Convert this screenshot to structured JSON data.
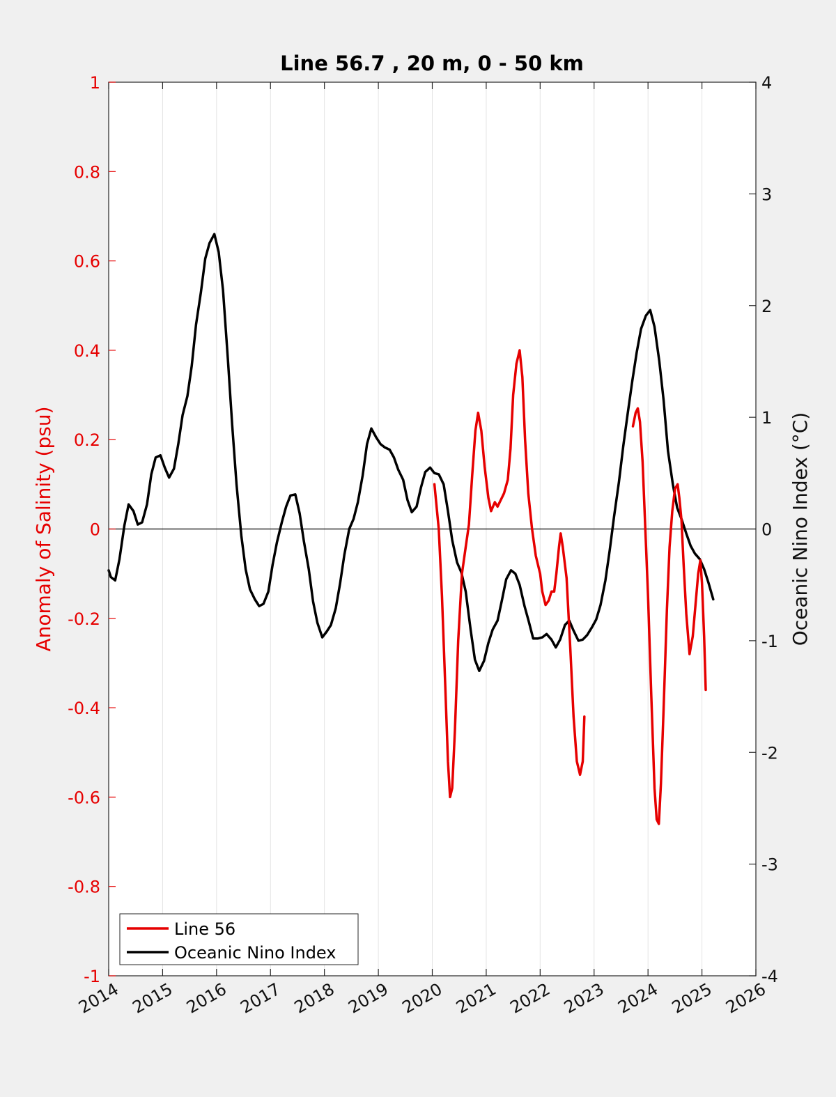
{
  "chart_data": {
    "type": "line",
    "title": "Line 56.7 , 20 m, 0 - 50 km",
    "ylabel_left": "Anomaly of Salinity (psu)",
    "ylabel_right": "Oceanic Nino Index (°C)",
    "xlim": [
      2014,
      2026
    ],
    "ylim_left": [
      -1,
      1
    ],
    "ylim_right": [
      -4,
      4
    ],
    "x_ticks": [
      "2014",
      "2015",
      "2016",
      "2017",
      "2018",
      "2019",
      "2020",
      "2021",
      "2022",
      "2023",
      "2024",
      "2025",
      "2026"
    ],
    "y_ticks_left": [
      "1",
      "0.8",
      "0.6",
      "0.4",
      "0.2",
      "0",
      "-0.2",
      "-0.4",
      "-0.6",
      "-0.8",
      "-1"
    ],
    "y_ticks_right": [
      "4",
      "3",
      "2",
      "1",
      "0",
      "-1",
      "-2",
      "-3",
      "-4"
    ],
    "grid": "vertical",
    "zero_line": true,
    "legend_position": "bottom-left",
    "colors": {
      "line56": "#e60000",
      "oni": "#000000",
      "left_axis": "#e60000"
    },
    "series": [
      {
        "name": "Line 56",
        "axis": "left",
        "segments": [
          [
            [
              2020.04,
              0.1
            ],
            [
              2020.12,
              0.0
            ],
            [
              2020.18,
              -0.15
            ],
            [
              2020.24,
              -0.35
            ],
            [
              2020.29,
              -0.52
            ],
            [
              2020.33,
              -0.6
            ],
            [
              2020.37,
              -0.58
            ],
            [
              2020.42,
              -0.45
            ],
            [
              2020.48,
              -0.25
            ],
            [
              2020.55,
              -0.1
            ],
            [
              2020.62,
              -0.04
            ],
            [
              2020.68,
              0.01
            ],
            [
              2020.74,
              0.12
            ],
            [
              2020.8,
              0.22
            ],
            [
              2020.85,
              0.26
            ],
            [
              2020.91,
              0.22
            ],
            [
              2020.97,
              0.14
            ],
            [
              2021.04,
              0.07
            ],
            [
              2021.09,
              0.04
            ],
            [
              2021.16,
              0.06
            ],
            [
              2021.21,
              0.05
            ],
            [
              2021.29,
              0.07
            ],
            [
              2021.33,
              0.08
            ],
            [
              2021.4,
              0.11
            ],
            [
              2021.45,
              0.18
            ],
            [
              2021.5,
              0.3
            ],
            [
              2021.56,
              0.37
            ],
            [
              2021.62,
              0.4
            ],
            [
              2021.67,
              0.34
            ],
            [
              2021.72,
              0.2
            ],
            [
              2021.78,
              0.08
            ],
            [
              2021.85,
              0.0
            ],
            [
              2021.92,
              -0.06
            ],
            [
              2022.0,
              -0.1
            ],
            [
              2022.04,
              -0.14
            ],
            [
              2022.1,
              -0.17
            ],
            [
              2022.16,
              -0.16
            ],
            [
              2022.21,
              -0.14
            ],
            [
              2022.26,
              -0.14
            ],
            [
              2022.3,
              -0.1
            ],
            [
              2022.35,
              -0.04
            ],
            [
              2022.38,
              -0.01
            ],
            [
              2022.42,
              -0.04
            ],
            [
              2022.49,
              -0.11
            ],
            [
              2022.56,
              -0.27
            ],
            [
              2022.62,
              -0.42
            ],
            [
              2022.68,
              -0.52
            ],
            [
              2022.74,
              -0.55
            ],
            [
              2022.79,
              -0.52
            ],
            [
              2022.82,
              -0.42
            ]
          ],
          [
            [
              2023.72,
              0.23
            ],
            [
              2023.77,
              0.26
            ],
            [
              2023.81,
              0.27
            ],
            [
              2023.85,
              0.24
            ],
            [
              2023.9,
              0.15
            ],
            [
              2023.95,
              0.0
            ],
            [
              2024.0,
              -0.15
            ],
            [
              2024.06,
              -0.37
            ],
            [
              2024.12,
              -0.58
            ],
            [
              2024.16,
              -0.65
            ],
            [
              2024.2,
              -0.66
            ],
            [
              2024.24,
              -0.57
            ],
            [
              2024.29,
              -0.4
            ],
            [
              2024.35,
              -0.18
            ],
            [
              2024.4,
              -0.04
            ],
            [
              2024.45,
              0.04
            ],
            [
              2024.5,
              0.09
            ],
            [
              2024.55,
              0.1
            ],
            [
              2024.58,
              0.07
            ],
            [
              2024.62,
              0.02
            ],
            [
              2024.66,
              -0.08
            ],
            [
              2024.71,
              -0.19
            ],
            [
              2024.77,
              -0.28
            ],
            [
              2024.83,
              -0.24
            ],
            [
              2024.88,
              -0.17
            ],
            [
              2024.93,
              -0.1
            ],
            [
              2024.97,
              -0.07
            ],
            [
              2025.0,
              -0.12
            ],
            [
              2025.04,
              -0.24
            ],
            [
              2025.07,
              -0.36
            ]
          ]
        ]
      },
      {
        "name": "Oceanic Nino Index",
        "axis": "right",
        "segments": [
          [
            [
              2014.0,
              -0.37
            ],
            [
              2014.04,
              -0.43
            ],
            [
              2014.12,
              -0.46
            ],
            [
              2014.2,
              -0.27
            ],
            [
              2014.29,
              0.03
            ],
            [
              2014.37,
              0.22
            ],
            [
              2014.46,
              0.16
            ],
            [
              2014.54,
              0.04
            ],
            [
              2014.62,
              0.06
            ],
            [
              2014.71,
              0.22
            ],
            [
              2014.79,
              0.49
            ],
            [
              2014.87,
              0.64
            ],
            [
              2014.96,
              0.66
            ],
            [
              2015.04,
              0.55
            ],
            [
              2015.12,
              0.46
            ],
            [
              2015.21,
              0.54
            ],
            [
              2015.29,
              0.76
            ],
            [
              2015.37,
              1.02
            ],
            [
              2015.46,
              1.19
            ],
            [
              2015.54,
              1.46
            ],
            [
              2015.62,
              1.83
            ],
            [
              2015.71,
              2.12
            ],
            [
              2015.79,
              2.42
            ],
            [
              2015.87,
              2.56
            ],
            [
              2015.96,
              2.64
            ],
            [
              2016.04,
              2.48
            ],
            [
              2016.12,
              2.14
            ],
            [
              2016.21,
              1.52
            ],
            [
              2016.29,
              0.93
            ],
            [
              2016.37,
              0.4
            ],
            [
              2016.46,
              -0.06
            ],
            [
              2016.54,
              -0.36
            ],
            [
              2016.62,
              -0.54
            ],
            [
              2016.71,
              -0.63
            ],
            [
              2016.79,
              -0.69
            ],
            [
              2016.87,
              -0.67
            ],
            [
              2016.96,
              -0.56
            ],
            [
              2017.04,
              -0.32
            ],
            [
              2017.12,
              -0.12
            ],
            [
              2017.21,
              0.06
            ],
            [
              2017.29,
              0.2
            ],
            [
              2017.37,
              0.3
            ],
            [
              2017.46,
              0.31
            ],
            [
              2017.54,
              0.14
            ],
            [
              2017.62,
              -0.11
            ],
            [
              2017.71,
              -0.36
            ],
            [
              2017.79,
              -0.65
            ],
            [
              2017.87,
              -0.84
            ],
            [
              2017.96,
              -0.97
            ],
            [
              2018.04,
              -0.92
            ],
            [
              2018.12,
              -0.86
            ],
            [
              2018.21,
              -0.71
            ],
            [
              2018.29,
              -0.49
            ],
            [
              2018.37,
              -0.23
            ],
            [
              2018.46,
              0.0
            ],
            [
              2018.54,
              0.09
            ],
            [
              2018.62,
              0.24
            ],
            [
              2018.71,
              0.48
            ],
            [
              2018.79,
              0.76
            ],
            [
              2018.87,
              0.9
            ],
            [
              2018.96,
              0.82
            ],
            [
              2019.04,
              0.76
            ],
            [
              2019.12,
              0.73
            ],
            [
              2019.21,
              0.71
            ],
            [
              2019.29,
              0.64
            ],
            [
              2019.37,
              0.53
            ],
            [
              2019.46,
              0.44
            ],
            [
              2019.54,
              0.26
            ],
            [
              2019.62,
              0.15
            ],
            [
              2019.71,
              0.2
            ],
            [
              2019.79,
              0.37
            ],
            [
              2019.87,
              0.51
            ],
            [
              2019.96,
              0.55
            ],
            [
              2020.04,
              0.5
            ],
            [
              2020.12,
              0.49
            ],
            [
              2020.21,
              0.4
            ],
            [
              2020.29,
              0.16
            ],
            [
              2020.37,
              -0.1
            ],
            [
              2020.46,
              -0.3
            ],
            [
              2020.54,
              -0.39
            ],
            [
              2020.62,
              -0.56
            ],
            [
              2020.71,
              -0.9
            ],
            [
              2020.79,
              -1.17
            ],
            [
              2020.87,
              -1.27
            ],
            [
              2020.96,
              -1.18
            ],
            [
              2021.04,
              -1.02
            ],
            [
              2021.12,
              -0.9
            ],
            [
              2021.21,
              -0.82
            ],
            [
              2021.29,
              -0.64
            ],
            [
              2021.37,
              -0.45
            ],
            [
              2021.46,
              -0.37
            ],
            [
              2021.54,
              -0.4
            ],
            [
              2021.62,
              -0.5
            ],
            [
              2021.71,
              -0.69
            ],
            [
              2021.79,
              -0.83
            ],
            [
              2021.87,
              -0.98
            ],
            [
              2021.96,
              -0.98
            ],
            [
              2022.04,
              -0.97
            ],
            [
              2022.12,
              -0.94
            ],
            [
              2022.21,
              -0.99
            ],
            [
              2022.29,
              -1.06
            ],
            [
              2022.37,
              -0.99
            ],
            [
              2022.46,
              -0.86
            ],
            [
              2022.54,
              -0.82
            ],
            [
              2022.62,
              -0.91
            ],
            [
              2022.71,
              -1.0
            ],
            [
              2022.79,
              -0.99
            ],
            [
              2022.87,
              -0.95
            ],
            [
              2022.96,
              -0.88
            ],
            [
              2023.04,
              -0.81
            ],
            [
              2023.12,
              -0.68
            ],
            [
              2023.21,
              -0.46
            ],
            [
              2023.29,
              -0.19
            ],
            [
              2023.37,
              0.11
            ],
            [
              2023.46,
              0.42
            ],
            [
              2023.54,
              0.74
            ],
            [
              2023.62,
              1.02
            ],
            [
              2023.71,
              1.33
            ],
            [
              2023.79,
              1.58
            ],
            [
              2023.87,
              1.79
            ],
            [
              2023.96,
              1.91
            ],
            [
              2024.04,
              1.96
            ],
            [
              2024.12,
              1.81
            ],
            [
              2024.21,
              1.5
            ],
            [
              2024.29,
              1.15
            ],
            [
              2024.37,
              0.7
            ],
            [
              2024.46,
              0.4
            ],
            [
              2024.54,
              0.19
            ],
            [
              2024.62,
              0.09
            ],
            [
              2024.71,
              -0.04
            ],
            [
              2024.79,
              -0.15
            ],
            [
              2024.87,
              -0.22
            ],
            [
              2024.96,
              -0.27
            ],
            [
              2025.04,
              -0.36
            ],
            [
              2025.12,
              -0.48
            ],
            [
              2025.21,
              -0.63
            ]
          ]
        ]
      }
    ]
  }
}
